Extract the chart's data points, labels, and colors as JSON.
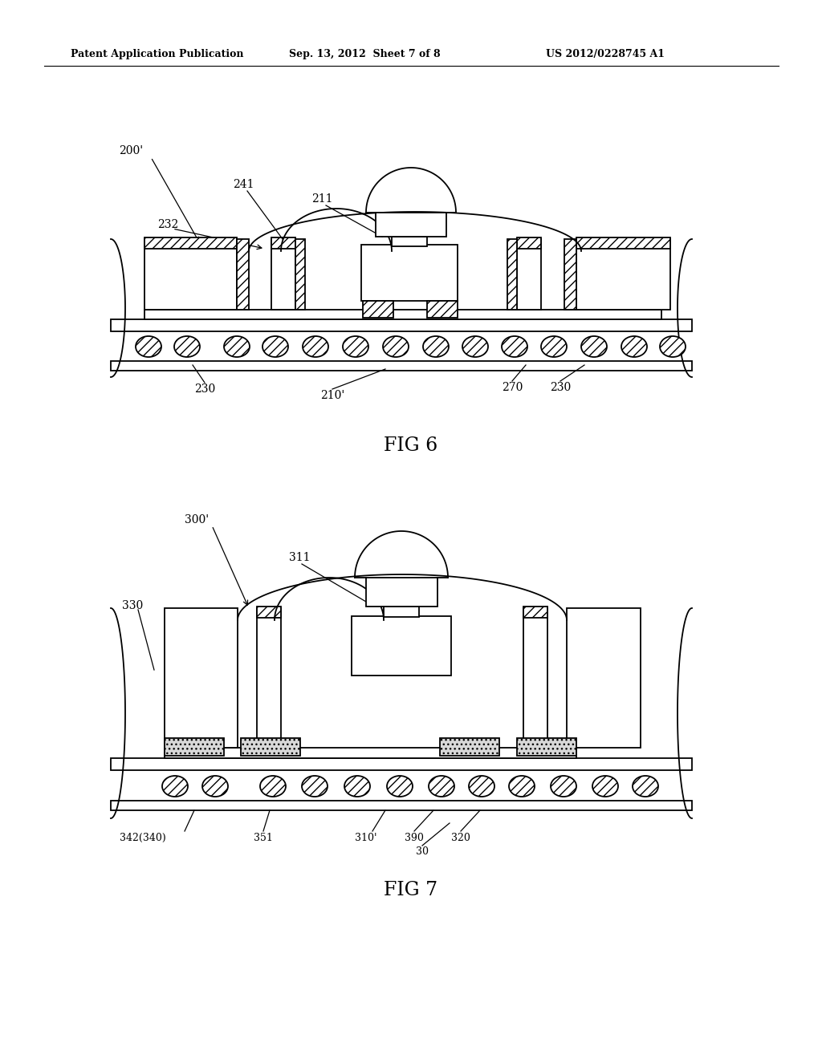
{
  "background": "#ffffff",
  "header_left": "Patent Application Publication",
  "header_mid": "Sep. 13, 2012  Sheet 7 of 8",
  "header_right": "US 2012/0228745 A1",
  "fig6_caption": "FIG 6",
  "fig7_caption": "FIG 7",
  "fig6_ref_label": "200'",
  "fig7_ref_label": "300'",
  "lw": 1.3
}
